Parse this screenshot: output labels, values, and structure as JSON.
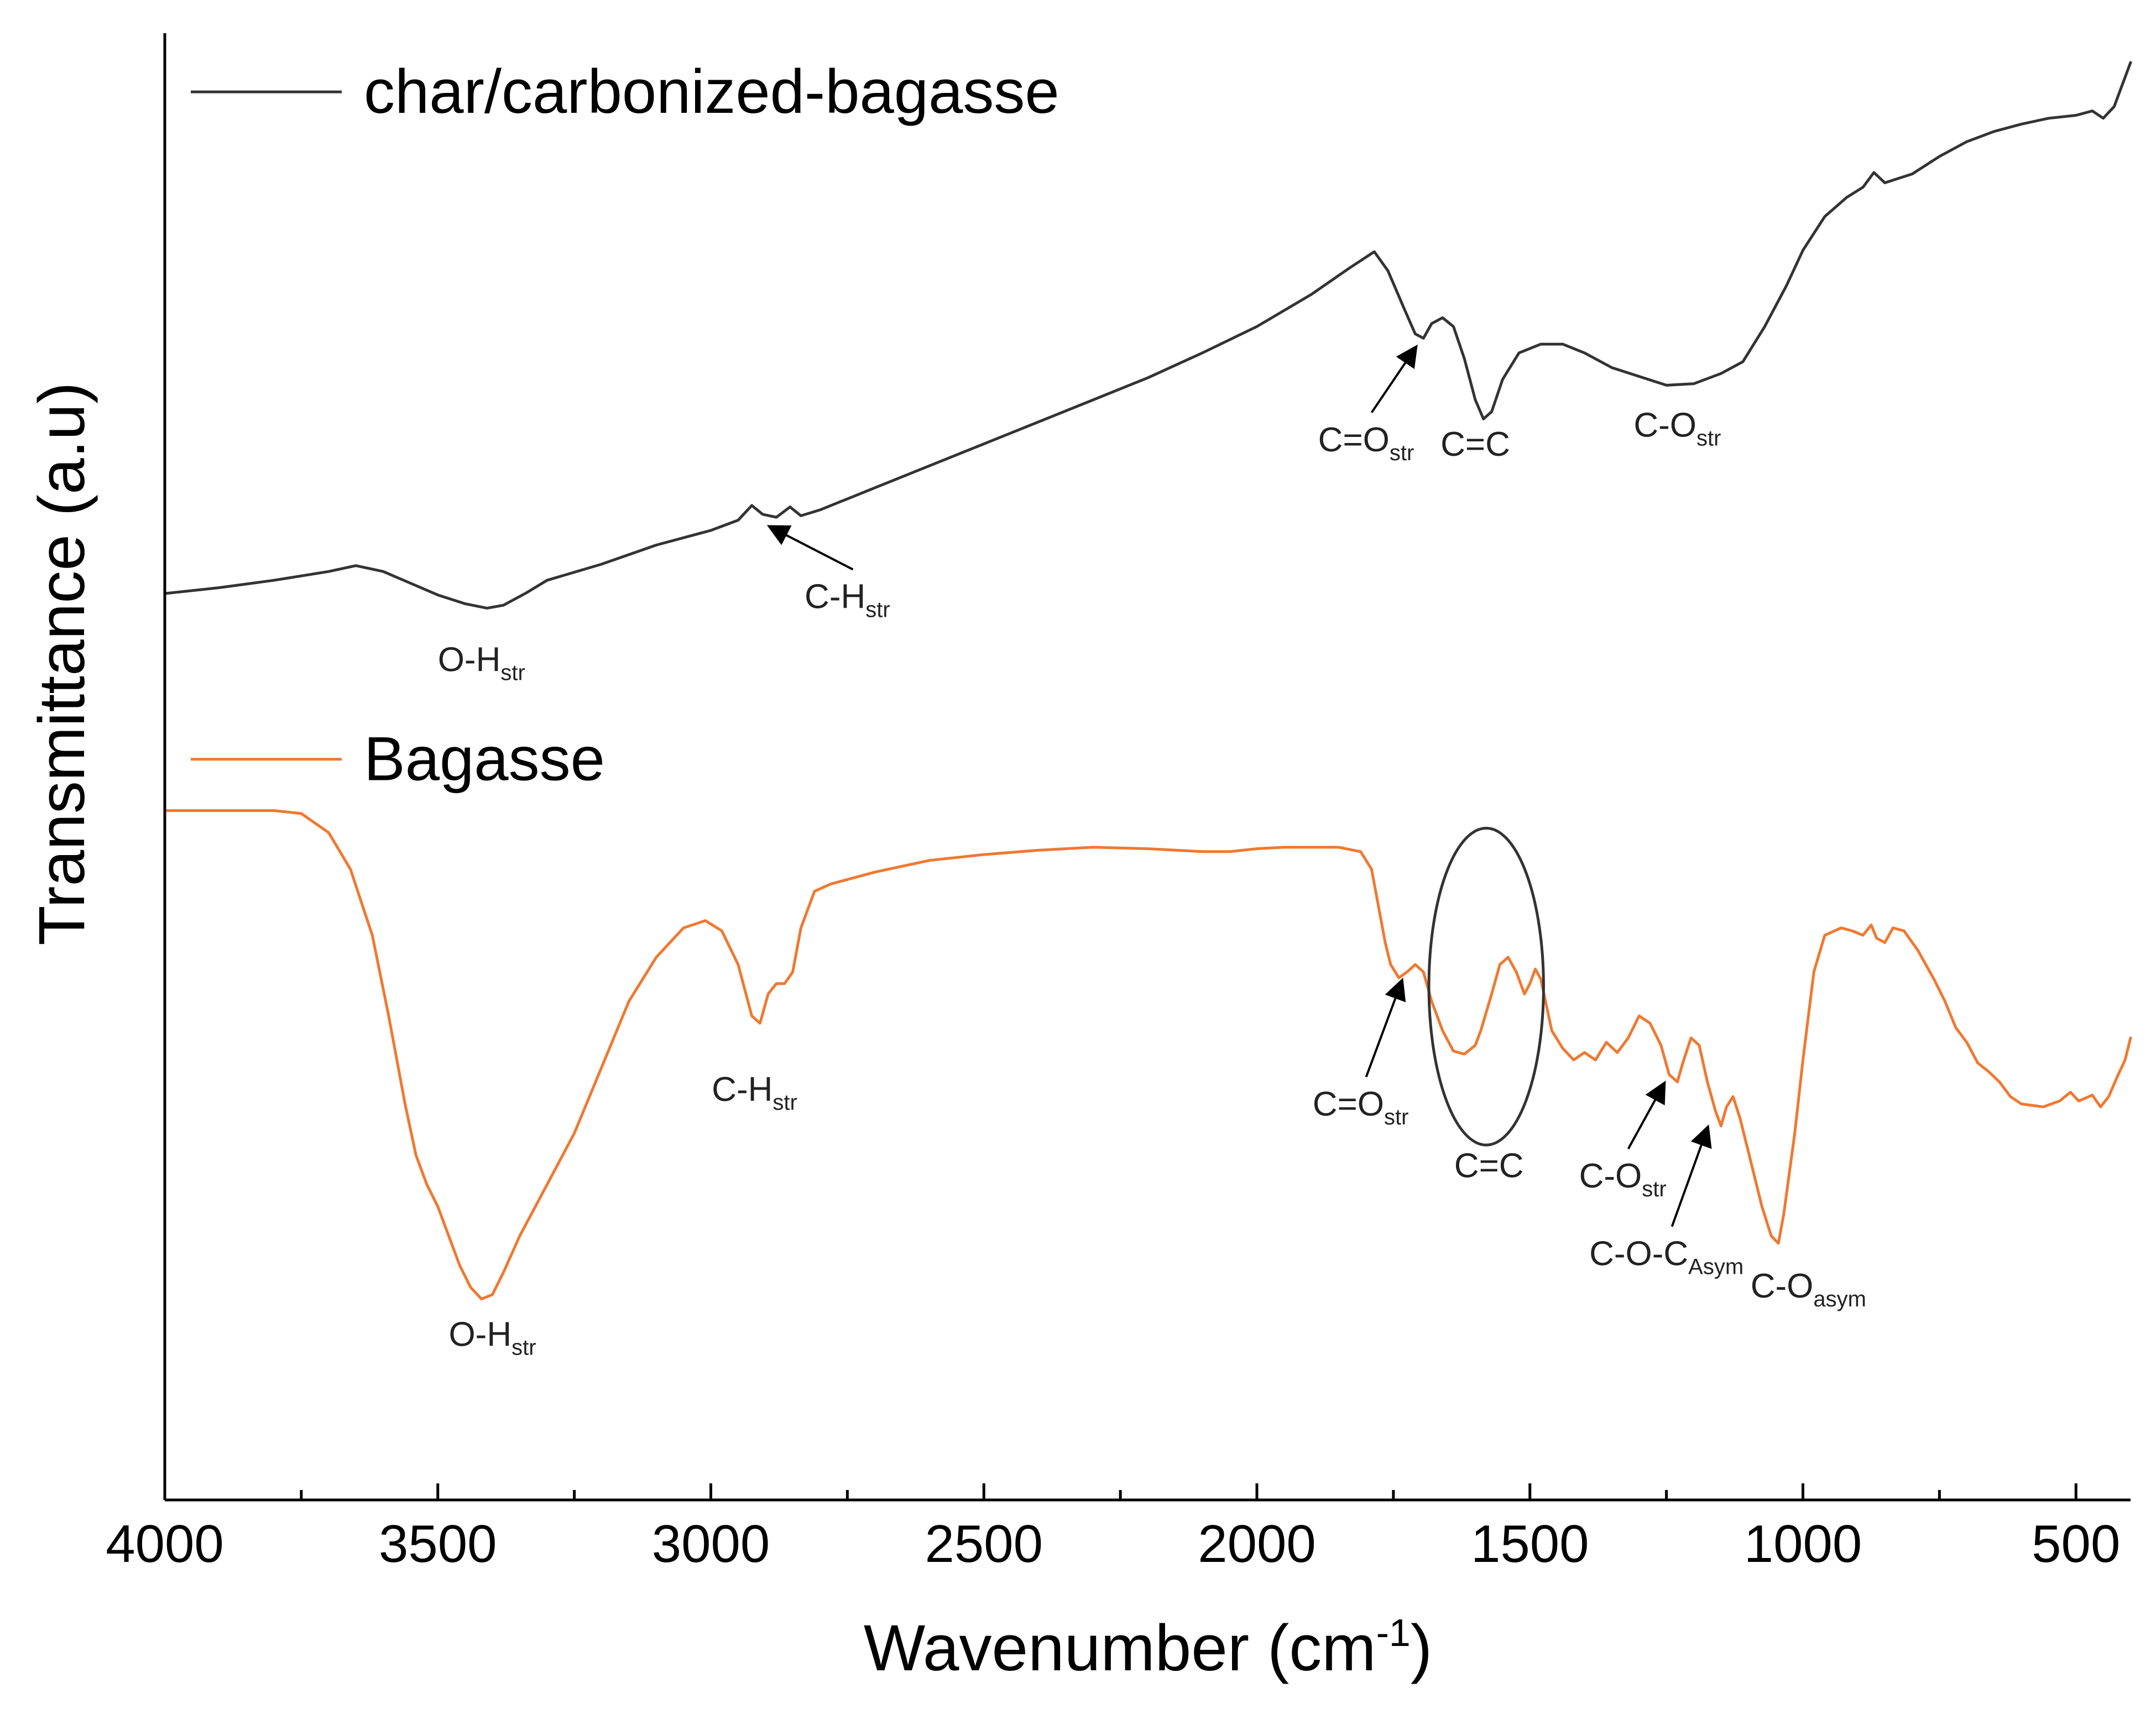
{
  "chart_data": {
    "type": "line",
    "title": "",
    "xlabel": "Wavenumber (cm",
    "xlabel_sup": "-1",
    "xlabel_close": ")",
    "ylabel": "Transmittance (a.u)",
    "xlim": [
      4000,
      400
    ],
    "x_reversed": true,
    "ylim": [
      0,
      1
    ],
    "y_ticks_shown": false,
    "grid": false,
    "x_ticks": [
      4000,
      3500,
      3000,
      2500,
      2000,
      1500,
      1000,
      500
    ],
    "x_tick_labels": [
      "4000",
      "3500",
      "3000",
      "2500",
      "2000",
      "1500",
      "1000",
      "500"
    ],
    "x_minor_ticks": [
      3750,
      3250,
      2750,
      2250,
      1750,
      1250,
      750
    ],
    "legend_location": "left, beside each curve",
    "series": [
      {
        "name": "char/carbonized-bagasse",
        "color": "#333333",
        "points": [
          [
            4000,
            0.618
          ],
          [
            3900,
            0.622
          ],
          [
            3800,
            0.627
          ],
          [
            3700,
            0.633
          ],
          [
            3650,
            0.637
          ],
          [
            3600,
            0.633
          ],
          [
            3550,
            0.625
          ],
          [
            3500,
            0.617
          ],
          [
            3450,
            0.611
          ],
          [
            3410,
            0.608
          ],
          [
            3380,
            0.61
          ],
          [
            3340,
            0.618
          ],
          [
            3300,
            0.627
          ],
          [
            3200,
            0.638
          ],
          [
            3100,
            0.651
          ],
          [
            3000,
            0.661
          ],
          [
            2950,
            0.668
          ],
          [
            2925,
            0.678
          ],
          [
            2905,
            0.672
          ],
          [
            2880,
            0.67
          ],
          [
            2855,
            0.677
          ],
          [
            2835,
            0.671
          ],
          [
            2800,
            0.675
          ],
          [
            2700,
            0.69
          ],
          [
            2600,
            0.705
          ],
          [
            2500,
            0.72
          ],
          [
            2400,
            0.735
          ],
          [
            2300,
            0.75
          ],
          [
            2200,
            0.765
          ],
          [
            2100,
            0.782
          ],
          [
            2000,
            0.8
          ],
          [
            1900,
            0.822
          ],
          [
            1830,
            0.84
          ],
          [
            1785,
            0.851
          ],
          [
            1760,
            0.838
          ],
          [
            1730,
            0.812
          ],
          [
            1710,
            0.795
          ],
          [
            1695,
            0.792
          ],
          [
            1680,
            0.802
          ],
          [
            1660,
            0.806
          ],
          [
            1640,
            0.8
          ],
          [
            1620,
            0.778
          ],
          [
            1600,
            0.75
          ],
          [
            1585,
            0.737
          ],
          [
            1570,
            0.742
          ],
          [
            1550,
            0.764
          ],
          [
            1520,
            0.782
          ],
          [
            1480,
            0.788
          ],
          [
            1440,
            0.788
          ],
          [
            1400,
            0.782
          ],
          [
            1350,
            0.772
          ],
          [
            1300,
            0.766
          ],
          [
            1250,
            0.76
          ],
          [
            1200,
            0.761
          ],
          [
            1150,
            0.768
          ],
          [
            1110,
            0.776
          ],
          [
            1070,
            0.8
          ],
          [
            1030,
            0.828
          ],
          [
            1000,
            0.852
          ],
          [
            960,
            0.875
          ],
          [
            920,
            0.888
          ],
          [
            890,
            0.895
          ],
          [
            870,
            0.905
          ],
          [
            850,
            0.898
          ],
          [
            800,
            0.904
          ],
          [
            750,
            0.916
          ],
          [
            700,
            0.926
          ],
          [
            650,
            0.933
          ],
          [
            600,
            0.938
          ],
          [
            550,
            0.942
          ],
          [
            500,
            0.944
          ],
          [
            470,
            0.947
          ],
          [
            450,
            0.942
          ],
          [
            430,
            0.95
          ],
          [
            415,
            0.965
          ],
          [
            400,
            0.98
          ]
        ]
      },
      {
        "name": "Bagasse",
        "color": "#f07830",
        "points": [
          [
            4000,
            0.47
          ],
          [
            3900,
            0.47
          ],
          [
            3800,
            0.47
          ],
          [
            3750,
            0.468
          ],
          [
            3700,
            0.455
          ],
          [
            3660,
            0.43
          ],
          [
            3620,
            0.385
          ],
          [
            3590,
            0.33
          ],
          [
            3560,
            0.27
          ],
          [
            3540,
            0.235
          ],
          [
            3520,
            0.215
          ],
          [
            3500,
            0.2
          ],
          [
            3480,
            0.18
          ],
          [
            3460,
            0.16
          ],
          [
            3440,
            0.145
          ],
          [
            3420,
            0.137
          ],
          [
            3400,
            0.14
          ],
          [
            3380,
            0.155
          ],
          [
            3350,
            0.18
          ],
          [
            3300,
            0.215
          ],
          [
            3250,
            0.25
          ],
          [
            3200,
            0.295
          ],
          [
            3150,
            0.34
          ],
          [
            3100,
            0.37
          ],
          [
            3050,
            0.39
          ],
          [
            3010,
            0.395
          ],
          [
            2980,
            0.388
          ],
          [
            2950,
            0.365
          ],
          [
            2925,
            0.33
          ],
          [
            2910,
            0.325
          ],
          [
            2895,
            0.345
          ],
          [
            2880,
            0.352
          ],
          [
            2865,
            0.352
          ],
          [
            2850,
            0.36
          ],
          [
            2835,
            0.39
          ],
          [
            2810,
            0.415
          ],
          [
            2780,
            0.42
          ],
          [
            2700,
            0.428
          ],
          [
            2600,
            0.436
          ],
          [
            2500,
            0.44
          ],
          [
            2400,
            0.443
          ],
          [
            2300,
            0.445
          ],
          [
            2200,
            0.444
          ],
          [
            2100,
            0.442
          ],
          [
            2050,
            0.442
          ],
          [
            2000,
            0.444
          ],
          [
            1950,
            0.445
          ],
          [
            1900,
            0.445
          ],
          [
            1850,
            0.445
          ],
          [
            1810,
            0.442
          ],
          [
            1790,
            0.43
          ],
          [
            1775,
            0.4
          ],
          [
            1765,
            0.38
          ],
          [
            1755,
            0.365
          ],
          [
            1740,
            0.356
          ],
          [
            1725,
            0.36
          ],
          [
            1710,
            0.365
          ],
          [
            1695,
            0.36
          ],
          [
            1680,
            0.34
          ],
          [
            1660,
            0.32
          ],
          [
            1640,
            0.306
          ],
          [
            1620,
            0.304
          ],
          [
            1600,
            0.31
          ],
          [
            1590,
            0.32
          ],
          [
            1570,
            0.345
          ],
          [
            1555,
            0.365
          ],
          [
            1540,
            0.37
          ],
          [
            1525,
            0.36
          ],
          [
            1510,
            0.345
          ],
          [
            1500,
            0.352
          ],
          [
            1490,
            0.362
          ],
          [
            1480,
            0.355
          ],
          [
            1460,
            0.32
          ],
          [
            1440,
            0.308
          ],
          [
            1420,
            0.3
          ],
          [
            1400,
            0.305
          ],
          [
            1380,
            0.3
          ],
          [
            1360,
            0.312
          ],
          [
            1340,
            0.305
          ],
          [
            1320,
            0.315
          ],
          [
            1300,
            0.33
          ],
          [
            1280,
            0.325
          ],
          [
            1260,
            0.31
          ],
          [
            1245,
            0.29
          ],
          [
            1230,
            0.285
          ],
          [
            1220,
            0.298
          ],
          [
            1205,
            0.315
          ],
          [
            1190,
            0.31
          ],
          [
            1175,
            0.285
          ],
          [
            1160,
            0.265
          ],
          [
            1150,
            0.255
          ],
          [
            1140,
            0.268
          ],
          [
            1128,
            0.275
          ],
          [
            1115,
            0.26
          ],
          [
            1095,
            0.23
          ],
          [
            1075,
            0.2
          ],
          [
            1058,
            0.18
          ],
          [
            1045,
            0.175
          ],
          [
            1035,
            0.195
          ],
          [
            1015,
            0.25
          ],
          [
            1000,
            0.3
          ],
          [
            980,
            0.36
          ],
          [
            960,
            0.385
          ],
          [
            930,
            0.39
          ],
          [
            910,
            0.388
          ],
          [
            890,
            0.385
          ],
          [
            875,
            0.392
          ],
          [
            865,
            0.383
          ],
          [
            850,
            0.38
          ],
          [
            835,
            0.39
          ],
          [
            815,
            0.388
          ],
          [
            790,
            0.375
          ],
          [
            760,
            0.355
          ],
          [
            740,
            0.34
          ],
          [
            720,
            0.322
          ],
          [
            700,
            0.312
          ],
          [
            680,
            0.298
          ],
          [
            660,
            0.292
          ],
          [
            640,
            0.285
          ],
          [
            620,
            0.275
          ],
          [
            600,
            0.27
          ],
          [
            560,
            0.268
          ],
          [
            530,
            0.272
          ],
          [
            510,
            0.278
          ],
          [
            495,
            0.272
          ],
          [
            470,
            0.276
          ],
          [
            455,
            0.268
          ],
          [
            440,
            0.275
          ],
          [
            425,
            0.288
          ],
          [
            410,
            0.3
          ],
          [
            400,
            0.315
          ]
        ]
      }
    ],
    "ellipse_highlight": {
      "label": "C=C",
      "center_x": 1580,
      "center_y": 0.35,
      "x_halfwidth": 105,
      "y_halfheight": 0.108
    },
    "annotations": [
      {
        "series": "char/carbonized-bagasse",
        "main": "O-H",
        "sub": "str",
        "x": 3410,
        "y": 0.608,
        "arrow": false,
        "text_x": 3420,
        "text_y": 0.565
      },
      {
        "series": "char/carbonized-bagasse",
        "main": "C-H",
        "sub": "str",
        "x": 2880,
        "y": 0.67,
        "arrow": true,
        "text_x": 2750,
        "text_y": 0.608
      },
      {
        "series": "char/carbonized-bagasse",
        "main": "C=O",
        "sub": "str",
        "x": 1700,
        "y": 0.792,
        "arrow": true,
        "text_x": 1800,
        "text_y": 0.715
      },
      {
        "series": "char/carbonized-bagasse",
        "main": "C=C",
        "sub": "",
        "x": 1585,
        "y": 0.737,
        "arrow": false,
        "text_x": 1600,
        "text_y": 0.712
      },
      {
        "series": "char/carbonized-bagasse",
        "main": "C-O",
        "sub": "str",
        "x": 1230,
        "y": 0.76,
        "arrow": false,
        "text_x": 1230,
        "text_y": 0.725
      },
      {
        "series": "Bagasse",
        "main": "O-H",
        "sub": "str",
        "x": 3400,
        "y": 0.137,
        "arrow": false,
        "text_x": 3400,
        "text_y": 0.105
      },
      {
        "series": "Bagasse",
        "main": "C-H",
        "sub": "str",
        "x": 2910,
        "y": 0.325,
        "arrow": false,
        "text_x": 2920,
        "text_y": 0.272
      },
      {
        "series": "Bagasse",
        "main": "C=O",
        "sub": "str",
        "x": 1725,
        "y": 0.36,
        "arrow": true,
        "text_x": 1810,
        "text_y": 0.262
      },
      {
        "series": "Bagasse",
        "main": "C=C",
        "sub": "",
        "x": 1580,
        "y": 0.242,
        "arrow": false,
        "text_x": 1575,
        "text_y": 0.22
      },
      {
        "series": "Bagasse",
        "main": "C-O",
        "sub": "str",
        "x": 1245,
        "y": 0.29,
        "arrow": true,
        "text_x": 1330,
        "text_y": 0.213
      },
      {
        "series": "Bagasse",
        "main": "C-O-C",
        "sub": "Asym",
        "x": 1165,
        "y": 0.26,
        "arrow": true,
        "text_x": 1250,
        "text_y": 0.16
      },
      {
        "series": "Bagasse",
        "main": "C-O",
        "sub": "asym",
        "x": 1045,
        "y": 0.175,
        "arrow": false,
        "text_x": 990,
        "text_y": 0.138
      }
    ]
  }
}
